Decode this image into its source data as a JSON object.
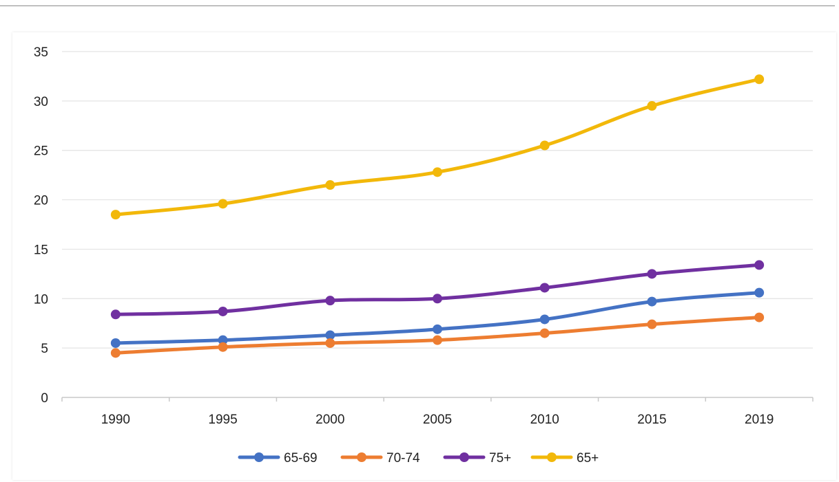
{
  "chart_data": {
    "type": "line",
    "title": "",
    "xlabel": "",
    "ylabel": "",
    "categories": [
      "1990",
      "1995",
      "2000",
      "2005",
      "2010",
      "2015",
      "2019"
    ],
    "ylim": [
      0,
      35
    ],
    "yticks": [
      "0",
      "5",
      "10",
      "15",
      "20",
      "25",
      "30",
      "35"
    ],
    "grid": "horizontal",
    "legend_position": "bottom",
    "series": [
      {
        "name": "65-69",
        "color": "#4472C4",
        "values": [
          5.5,
          5.8,
          6.3,
          6.9,
          7.9,
          9.7,
          10.6
        ]
      },
      {
        "name": "70-74",
        "color": "#ED7D31",
        "values": [
          4.5,
          5.1,
          5.5,
          5.8,
          6.5,
          7.4,
          8.1
        ]
      },
      {
        "name": "75+",
        "color": "#7030A0",
        "values": [
          8.4,
          8.7,
          9.8,
          10.0,
          11.1,
          12.5,
          13.4
        ]
      },
      {
        "name": "65+",
        "color": "#F2B80A",
        "values": [
          18.5,
          19.6,
          21.5,
          22.8,
          25.5,
          29.5,
          32.2
        ]
      }
    ]
  }
}
